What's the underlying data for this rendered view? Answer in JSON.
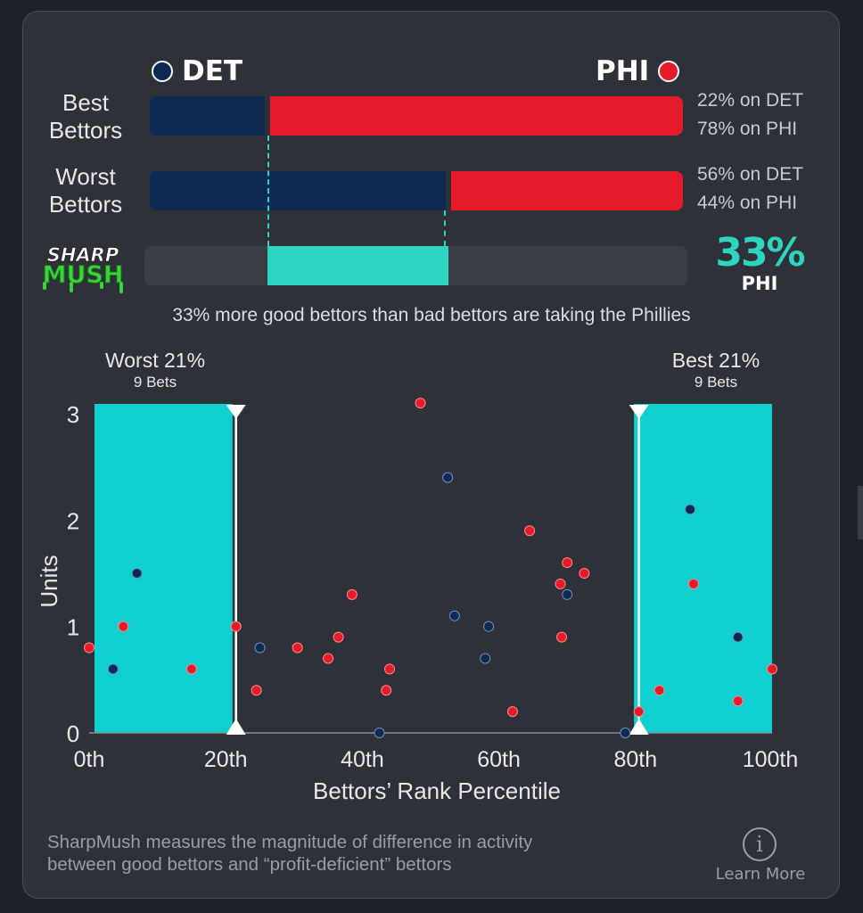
{
  "teams": {
    "away": {
      "abbr": "DET",
      "color": "#0e2a52"
    },
    "home": {
      "abbr": "PHI",
      "color": "#e51a2b"
    }
  },
  "rows": [
    {
      "label_line1": "Best",
      "label_line2": "Bettors",
      "det_pct": 22,
      "phi_pct": 78,
      "det_text": "22% on DET",
      "phi_text": "78% on PHI"
    },
    {
      "label_line1": "Worst",
      "label_line2": "Bettors",
      "det_pct": 56,
      "phi_pct": 44,
      "det_text": "56% on DET",
      "phi_text": "44% on PHI"
    }
  ],
  "logo": {
    "line1": "SHARP",
    "line2": "MUSH"
  },
  "sharpmush": {
    "value": "33%",
    "team": "PHI",
    "accent": "#2dd4bf"
  },
  "summary": "33% more good bettors than bad bettors are taking the Phillies",
  "zones": {
    "worst": {
      "title": "Worst 21%",
      "subtitle": "9 Bets"
    },
    "best": {
      "title": "Best 21%",
      "subtitle": "9 Bets"
    }
  },
  "chart_data": {
    "type": "scatter",
    "xlabel": "Bettors’ Rank Percentile",
    "ylabel": "Units",
    "xlim": [
      0,
      100
    ],
    "ylim": [
      0,
      3
    ],
    "x_ticks": [
      {
        "value": 0,
        "label": "0th"
      },
      {
        "value": 20,
        "label": "20th"
      },
      {
        "value": 40,
        "label": "40th"
      },
      {
        "value": 60,
        "label": "60th"
      },
      {
        "value": 80,
        "label": "80th"
      },
      {
        "value": 100,
        "label": "100th"
      }
    ],
    "y_ticks": [
      0,
      1,
      2,
      3
    ],
    "highlight_ranges": [
      [
        0,
        21
      ],
      [
        79,
        100
      ]
    ],
    "series": [
      {
        "name": "DET",
        "color": "#0e2a52",
        "points": [
          [
            3.5,
            0.6
          ],
          [
            7,
            1.5
          ],
          [
            25,
            0.8
          ],
          [
            42.5,
            0.0
          ],
          [
            52.5,
            2.4
          ],
          [
            53.5,
            1.1
          ],
          [
            58.5,
            1.0
          ],
          [
            58,
            0.7
          ],
          [
            70,
            1.3
          ],
          [
            78.5,
            0.0
          ],
          [
            88,
            2.1
          ],
          [
            95,
            0.9
          ]
        ]
      },
      {
        "name": "PHI",
        "color": "#e51a2b",
        "points": [
          [
            0,
            0.8
          ],
          [
            5,
            1.0
          ],
          [
            15,
            0.6
          ],
          [
            21.5,
            1.0
          ],
          [
            24.5,
            0.4
          ],
          [
            30.5,
            0.8
          ],
          [
            35,
            0.7
          ],
          [
            36.5,
            0.9
          ],
          [
            38.5,
            1.3
          ],
          [
            44,
            0.6
          ],
          [
            43.5,
            0.4
          ],
          [
            48.5,
            3.1
          ],
          [
            62,
            0.2
          ],
          [
            64.5,
            1.9
          ],
          [
            69,
            1.4
          ],
          [
            70,
            1.6
          ],
          [
            72.5,
            1.5
          ],
          [
            69.2,
            0.9
          ],
          [
            80.5,
            0.2
          ],
          [
            83.5,
            0.4
          ],
          [
            88.5,
            1.4
          ],
          [
            95,
            0.3
          ],
          [
            100,
            0.6
          ]
        ]
      }
    ]
  },
  "footer": {
    "text_line1": "SharpMush measures the magnitude of difference in activity",
    "text_line2": "between good bettors and “profit-deficient” bettors",
    "info_glyph": "i",
    "learn_more": "Learn More"
  }
}
